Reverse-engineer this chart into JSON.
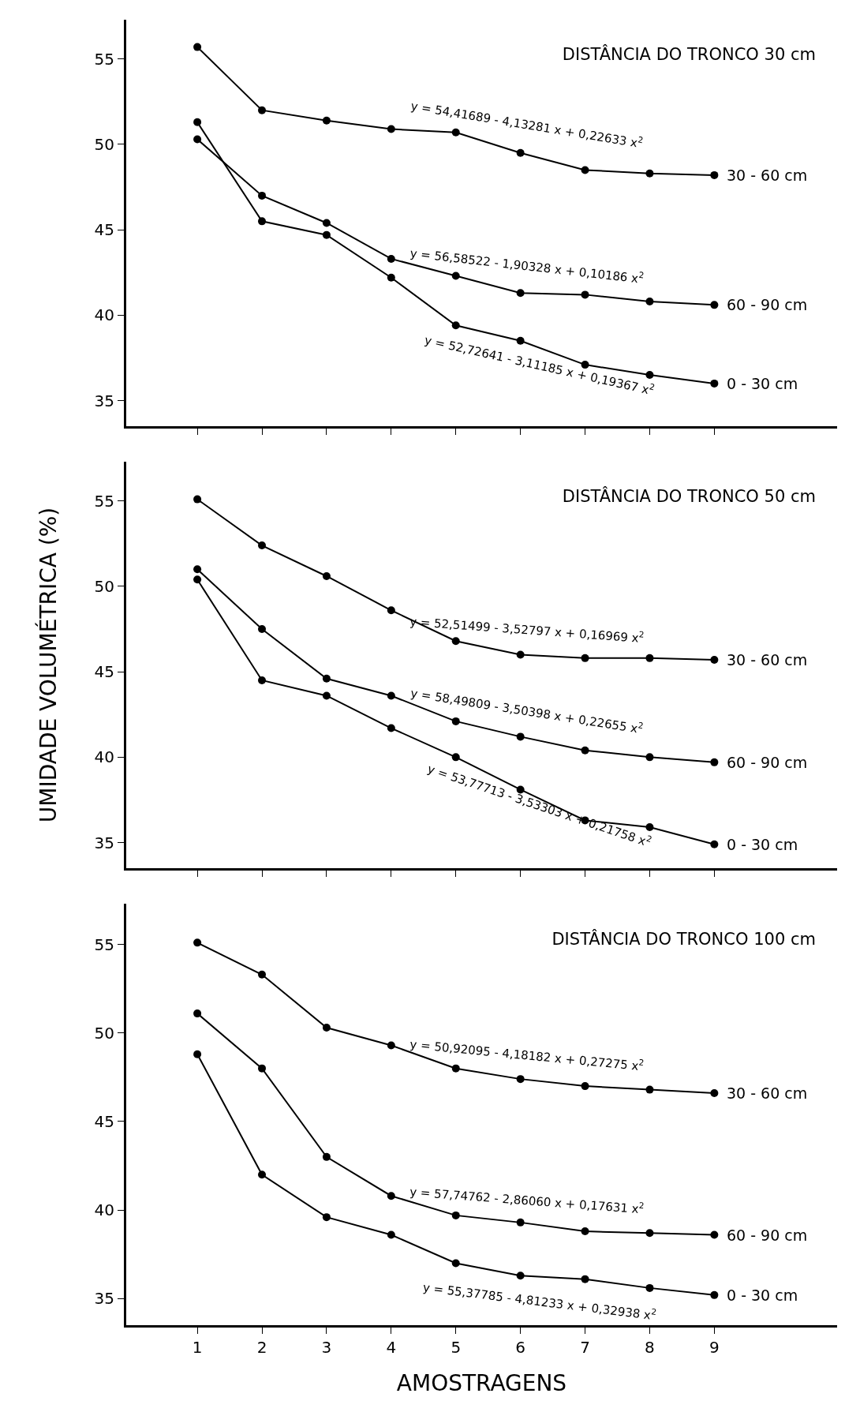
{
  "chart_data": [
    {
      "type": "line",
      "title": "DISTÂNCIA DO TRONCO 30 cm",
      "x": [
        1,
        2,
        3,
        4,
        5,
        6,
        7,
        8,
        9
      ],
      "xlim": [
        -0.1,
        10.9
      ],
      "xticks": [
        {
          "value": 1,
          "label": null
        },
        {
          "value": 2,
          "label": null
        },
        {
          "value": 3,
          "label": null
        },
        {
          "value": 4,
          "label": null
        },
        {
          "value": 5,
          "label": null
        },
        {
          "value": 6,
          "label": null
        },
        {
          "value": 7,
          "label": null
        },
        {
          "value": 8,
          "label": null
        },
        {
          "value": 9,
          "label": null
        }
      ],
      "ylim": [
        33.5,
        57.3
      ],
      "yticks": [
        35,
        40,
        45,
        50,
        55
      ],
      "tick_labels": "y",
      "marker": "circle",
      "line_style": "solid",
      "legend": false,
      "grid": false,
      "series": [
        {
          "name": "30 - 60 cm",
          "color": "#000000",
          "values": [
            55.7,
            52.0,
            51.4,
            50.9,
            50.7,
            49.5,
            48.5,
            48.3,
            48.2
          ]
        },
        {
          "name": "60 - 90 cm",
          "color": "#000000",
          "values": [
            50.3,
            47.0,
            45.4,
            43.3,
            42.3,
            41.3,
            41.2,
            40.8,
            40.6
          ]
        },
        {
          "name": "0 - 30 cm",
          "color": "#000000",
          "values": [
            51.3,
            45.5,
            44.7,
            42.2,
            39.4,
            38.5,
            37.1,
            36.5,
            36.0
          ]
        }
      ],
      "annotations": [
        "y = 54,41689 - 4,13281 x + 0,22633 x$^{2}$",
        "y = 56,58522 - 1,90328 x + 0,10186 x$^{2}$",
        "y = 52,72641 - 3,11185 x + 0,19367 x$^{2}$"
      ]
    },
    {
      "type": "line",
      "title": "DISTÂNCIA DO TRONCO 50 cm",
      "ylabel": "UMIDADE VOLUMÉTRICA (%)",
      "x": [
        1,
        2,
        3,
        4,
        5,
        6,
        7,
        8,
        9
      ],
      "xlim": [
        -0.1,
        10.9
      ],
      "xticks": [
        {
          "value": 1,
          "label": null
        },
        {
          "value": 2,
          "label": null
        },
        {
          "value": 3,
          "label": null
        },
        {
          "value": 4,
          "label": null
        },
        {
          "value": 5,
          "label": null
        },
        {
          "value": 6,
          "label": null
        },
        {
          "value": 7,
          "label": null
        },
        {
          "value": 8,
          "label": null
        },
        {
          "value": 9,
          "label": null
        }
      ],
      "ylim": [
        33.5,
        57.3
      ],
      "yticks": [
        35,
        40,
        45,
        50,
        55
      ],
      "tick_labels": "y",
      "marker": "circle",
      "line_style": "solid",
      "legend": false,
      "grid": false,
      "series": [
        {
          "name": "30 - 60 cm",
          "color": "#000000",
          "values": [
            55.1,
            52.4,
            50.6,
            48.6,
            46.8,
            46.0,
            45.8,
            45.8,
            45.7
          ]
        },
        {
          "name": "60 - 90 cm",
          "color": "#000000",
          "values": [
            51.0,
            47.5,
            44.6,
            43.6,
            42.1,
            41.2,
            40.4,
            40.0,
            39.7
          ]
        },
        {
          "name": "0 - 30 cm",
          "color": "#000000",
          "values": [
            50.4,
            44.5,
            43.6,
            41.7,
            40.0,
            38.1,
            36.3,
            35.9,
            34.9
          ]
        }
      ],
      "annotations": [
        "y = 52,51499 - 3,52797 x + 0,16969 x$^{2}$",
        "y = 58,49809 - 3,50398 x + 0,22655 x$^{2}$",
        "y = 53,77713 - 3,53303 x + 0,21758 x$^{2}$"
      ]
    },
    {
      "type": "line",
      "title": "DISTÂNCIA DO TRONCO 100 cm",
      "xlabel": "AMOSTRAGENS",
      "x": [
        1,
        2,
        3,
        4,
        5,
        6,
        7,
        8,
        9
      ],
      "xlim": [
        -0.1,
        10.9
      ],
      "xticks": [
        1,
        2,
        3,
        4,
        5,
        6,
        7,
        8,
        9
      ],
      "ylim": [
        33.5,
        57.3
      ],
      "yticks": [
        35,
        40,
        45,
        50,
        55
      ],
      "marker": "circle",
      "line_style": "solid",
      "legend": false,
      "grid": false,
      "series": [
        {
          "name": "30 - 60 cm",
          "color": "#000000",
          "values": [
            55.1,
            53.3,
            50.3,
            49.3,
            48.0,
            47.4,
            47.0,
            46.8,
            46.6
          ]
        },
        {
          "name": "60 - 90 cm",
          "color": "#000000",
          "values": [
            51.1,
            48.0,
            43.0,
            40.8,
            39.7,
            39.3,
            38.8,
            38.7,
            38.6
          ]
        },
        {
          "name": "0 - 30 cm",
          "color": "#000000",
          "values": [
            48.8,
            42.0,
            39.6,
            38.6,
            37.0,
            36.3,
            36.1,
            35.6,
            35.2
          ]
        }
      ],
      "annotations": [
        "y = 50,92095 - 4,18182 x + 0,27275 x$^{2}$",
        "y = 57,74762 - 2,86060 x + 0,17631 x$^{2}$",
        "y = 55,37785 - 4,81233 x + 0,32938 x$^{2}$"
      ]
    }
  ]
}
